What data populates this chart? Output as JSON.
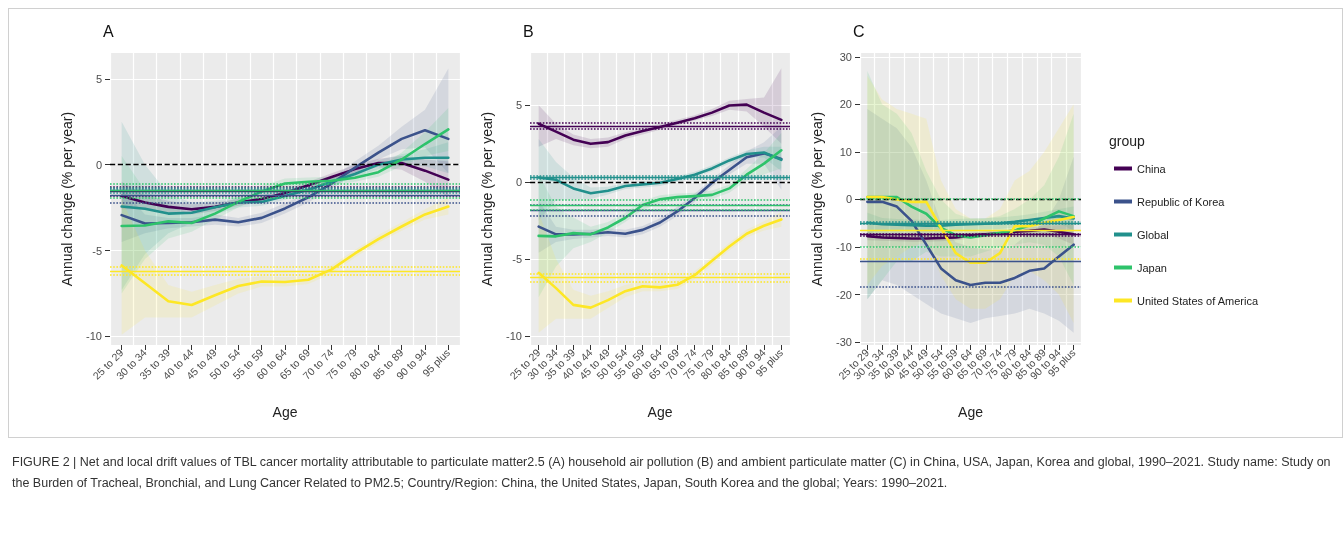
{
  "chart_data": [
    {
      "type": "line",
      "title": "A",
      "xlabel": "Age",
      "ylabel": "Annual change (% per year)",
      "categories": [
        "25 to 29",
        "30 to 34",
        "35 to 39",
        "40 to 44",
        "45 to 49",
        "50 to 54",
        "55 to 59",
        "60 to 64",
        "65 to 69",
        "70 to 74",
        "75 to 79",
        "80 to 84",
        "85 to 89",
        "90 to 94",
        "95 plus"
      ],
      "ylim": [
        -10.5,
        6.5
      ],
      "yticks": [
        -10,
        -5,
        0,
        5
      ],
      "grid": true,
      "annotations": [
        "FIGURE 2 | Net and local drift values of TBL cancer mortality attributable to particulate matter2.5 (A) household air pollution (B) and ambient particulate matter (C) in China, USA, Japan, Korea and global, 1990–2021. Study name: Study on the Burden of Tracheal, Bronchial, and Lung Cancer Related to PM2.5; Country/Region: China, the United States, Japan, South Korea and the global; Years: 1990–2021."
      ],
      "series": [
        {
          "color": "#440154",
          "values": [
            -1.83,
            -2.2,
            -2.46,
            -2.6,
            -2.46,
            -2.2,
            -2.0,
            -1.65,
            -1.2,
            -0.72,
            -0.26,
            0.1,
            0.1,
            -0.35,
            -0.87
          ],
          "lower": [
            -2.6,
            -2.6,
            -2.8,
            -2.9,
            -2.7,
            -2.4,
            -2.2,
            -1.85,
            -1.4,
            -0.95,
            -0.5,
            -0.15,
            -0.3,
            -1.0,
            -1.9
          ],
          "upper": [
            -1.0,
            -1.8,
            -2.1,
            -2.3,
            -2.2,
            -2.0,
            -1.8,
            -1.45,
            -1.0,
            -0.5,
            0.0,
            0.35,
            0.5,
            0.3,
            0.2
          ]
        },
        {
          "color": "#3b528b",
          "values": [
            -2.94,
            -3.43,
            -3.4,
            -3.35,
            -3.2,
            -3.35,
            -3.1,
            -2.55,
            -1.9,
            -1.1,
            -0.17,
            0.7,
            1.5,
            2.0,
            1.5
          ],
          "lower": [
            -4.5,
            -4.0,
            -3.7,
            -3.6,
            -3.5,
            -3.6,
            -3.4,
            -2.85,
            -2.2,
            -1.4,
            -0.5,
            0.3,
            0.9,
            1.0,
            -0.5
          ],
          "upper": [
            -1.4,
            -2.9,
            -3.1,
            -3.1,
            -2.9,
            -3.1,
            -2.8,
            -2.25,
            -1.6,
            -0.8,
            0.2,
            1.1,
            2.2,
            3.2,
            5.6
          ]
        },
        {
          "color": "#21908c",
          "values": [
            -2.44,
            -2.57,
            -2.85,
            -2.8,
            -2.48,
            -2.2,
            -2.17,
            -1.83,
            -1.46,
            -1.0,
            -0.54,
            0,
            0.3,
            0.4,
            0.4
          ],
          "lower": [
            -7.3,
            -5.2,
            -4.0,
            -3.4,
            -2.9,
            -2.5,
            -2.4,
            -2.05,
            -1.7,
            -1.2,
            -0.75,
            -0.25,
            0.0,
            -0.1,
            -0.5
          ],
          "upper": [
            2.5,
            0.0,
            -1.7,
            -2.2,
            -2.1,
            -1.9,
            -1.95,
            -1.6,
            -1.25,
            -0.8,
            -0.35,
            0.25,
            0.6,
            0.9,
            1.3
          ]
        },
        {
          "color": "#2ec36b",
          "values": [
            -3.57,
            -3.54,
            -3.3,
            -3.4,
            -2.85,
            -2.17,
            -1.56,
            -1.1,
            -1.0,
            -0.94,
            -0.76,
            -0.44,
            0.3,
            1.2,
            2.05
          ],
          "lower": [
            -7.5,
            -5.5,
            -4.3,
            -3.9,
            -3.2,
            -2.5,
            -1.9,
            -1.4,
            -1.25,
            -1.2,
            -1.0,
            -0.7,
            -0.1,
            0.5,
            0.8
          ],
          "upper": [
            0.5,
            -1.5,
            -2.3,
            -2.9,
            -2.5,
            -1.85,
            -1.25,
            -0.8,
            -0.75,
            -0.7,
            -0.5,
            -0.2,
            0.7,
            1.9,
            3.3
          ]
        },
        {
          "color": "#fde725",
          "values": [
            -5.87,
            -6.9,
            -7.95,
            -8.17,
            -7.6,
            -7.07,
            -6.8,
            -6.83,
            -6.7,
            -6.1,
            -5.17,
            -4.33,
            -3.6,
            -2.9,
            -2.44
          ],
          "lower": [
            -9.9,
            -8.9,
            -8.9,
            -8.9,
            -8.2,
            -7.5,
            -7.1,
            -7.1,
            -6.95,
            -6.35,
            -5.4,
            -4.55,
            -3.85,
            -3.2,
            -2.9
          ],
          "upper": [
            -2.0,
            -5.0,
            -7.0,
            -7.4,
            -7.0,
            -6.65,
            -6.5,
            -6.55,
            -6.45,
            -5.85,
            -4.95,
            -4.1,
            -3.35,
            -2.6,
            -1.9
          ]
        }
      ],
      "ref_lines": [
        {
          "axis": "y",
          "value": 0,
          "color": "#000000",
          "line_style": "dashed"
        },
        {
          "axis": "y",
          "value": -1.55,
          "color": "#440154",
          "line_style": "solid"
        },
        {
          "axis": "y",
          "value": -1.3,
          "color": "#440154",
          "line_style": "dotted"
        },
        {
          "axis": "y",
          "value": -1.8,
          "color": "#440154",
          "line_style": "dotted"
        },
        {
          "axis": "y",
          "value": -1.8,
          "color": "#3b528b",
          "line_style": "solid"
        },
        {
          "axis": "y",
          "value": -1.4,
          "color": "#3b528b",
          "line_style": "dotted"
        },
        {
          "axis": "y",
          "value": -2.2,
          "color": "#3b528b",
          "line_style": "dotted"
        },
        {
          "axis": "y",
          "value": -1.5,
          "color": "#21908c",
          "line_style": "solid"
        },
        {
          "axis": "y",
          "value": -1.35,
          "color": "#21908c",
          "line_style": "dotted"
        },
        {
          "axis": "y",
          "value": -1.65,
          "color": "#21908c",
          "line_style": "dotted"
        },
        {
          "axis": "y",
          "value": -1.5,
          "color": "#2ec36b",
          "line_style": "solid"
        },
        {
          "axis": "y",
          "value": -1.1,
          "color": "#2ec36b",
          "line_style": "dotted"
        },
        {
          "axis": "y",
          "value": -1.9,
          "color": "#2ec36b",
          "line_style": "dotted"
        },
        {
          "axis": "y",
          "value": -6.2,
          "color": "#fde725",
          "line_style": "solid"
        },
        {
          "axis": "y",
          "value": -5.94,
          "color": "#fde725",
          "line_style": "dotted"
        },
        {
          "axis": "y",
          "value": -6.43,
          "color": "#fde725",
          "line_style": "dotted"
        }
      ]
    },
    {
      "type": "line",
      "title": "B",
      "xlabel": "Age",
      "ylabel": "Annual change (% per year)",
      "categories": [
        "25 to 29",
        "30 to 34",
        "35 to 39",
        "40 to 44",
        "45 to 49",
        "50 to 54",
        "55 to 59",
        "60 to 64",
        "65 to 69",
        "70 to 74",
        "75 to 79",
        "80 to 84",
        "85 to 89",
        "90 to 94",
        "95 plus"
      ],
      "ylim": [
        -10.6,
        8.4
      ],
      "yticks": [
        -10,
        -5,
        0,
        5
      ],
      "grid": true,
      "series": [
        {
          "color": "#440154",
          "values": [
            3.8,
            3.28,
            2.76,
            2.49,
            2.6,
            3.03,
            3.32,
            3.59,
            3.86,
            4.15,
            4.52,
            4.98,
            5.04,
            4.52,
            4.05
          ],
          "lower": [
            2.3,
            2.8,
            2.4,
            2.2,
            2.3,
            2.8,
            3.1,
            3.4,
            3.7,
            4.0,
            4.3,
            4.7,
            4.6,
            3.6,
            2.5
          ],
          "upper": [
            5.0,
            3.8,
            3.1,
            2.8,
            2.9,
            3.25,
            3.55,
            3.8,
            4.05,
            4.35,
            4.75,
            5.3,
            5.4,
            5.5,
            7.4
          ]
        },
        {
          "color": "#3b528b",
          "values": [
            -2.9,
            -3.4,
            -3.4,
            -3.36,
            -3.26,
            -3.36,
            -3.11,
            -2.63,
            -1.91,
            -1.04,
            -0.04,
            0.79,
            1.62,
            1.87,
            1.51
          ],
          "lower": [
            -4.6,
            -3.9,
            -3.7,
            -3.6,
            -3.5,
            -3.6,
            -3.4,
            -2.9,
            -2.2,
            -1.3,
            -0.3,
            0.5,
            1.2,
            1.2,
            -0.5
          ],
          "upper": [
            -1.2,
            -2.9,
            -3.1,
            -3.1,
            -3.0,
            -3.1,
            -2.85,
            -2.35,
            -1.6,
            -0.75,
            0.2,
            1.1,
            2.0,
            2.6,
            3.6
          ]
        },
        {
          "color": "#21908c",
          "values": [
            0.3,
            0.15,
            -0.41,
            -0.73,
            -0.56,
            -0.25,
            -0.15,
            -0.04,
            0.2,
            0.48,
            0.89,
            1.41,
            1.83,
            1.93,
            1.45
          ],
          "lower": [
            -2.5,
            -1.2,
            -1.1,
            -1.1,
            -0.8,
            -0.45,
            -0.35,
            -0.25,
            0,
            0.28,
            0.7,
            1.2,
            1.6,
            1.6,
            0.7
          ],
          "upper": [
            2.8,
            1.3,
            0.3,
            -0.35,
            -0.3,
            -0.05,
            0.05,
            0.15,
            0.4,
            0.68,
            1.1,
            1.6,
            2.05,
            2.3,
            2.3
          ]
        },
        {
          "color": "#2ec36b",
          "values": [
            -3.5,
            -3.53,
            -3.32,
            -3.4,
            -2.95,
            -2.32,
            -1.49,
            -1.12,
            -0.98,
            -0.91,
            -0.83,
            -0.41,
            0.48,
            1.2,
            2.07
          ],
          "lower": [
            -7.5,
            -5.5,
            -4.3,
            -3.9,
            -3.3,
            -2.6,
            -1.8,
            -1.4,
            -1.2,
            -1.15,
            -1.1,
            -0.7,
            0.1,
            0.5,
            0.9
          ],
          "upper": [
            0.5,
            -1.6,
            -2.3,
            -2.9,
            -2.6,
            -2.0,
            -1.2,
            -0.85,
            -0.75,
            -0.7,
            -0.55,
            -0.15,
            0.85,
            1.9,
            3.2
          ]
        },
        {
          "color": "#fde725",
          "values": [
            -5.9,
            -6.9,
            -7.99,
            -8.17,
            -7.68,
            -7.1,
            -6.78,
            -6.85,
            -6.68,
            -6.06,
            -5.12,
            -4.19,
            -3.36,
            -2.84,
            -2.43
          ],
          "lower": [
            -9.8,
            -8.9,
            -8.9,
            -8.9,
            -8.2,
            -7.5,
            -7.1,
            -7.1,
            -6.95,
            -6.3,
            -5.4,
            -4.45,
            -3.6,
            -3.15,
            -2.9
          ],
          "upper": [
            -2.0,
            -5.0,
            -7.0,
            -7.4,
            -7.1,
            -6.7,
            -6.45,
            -6.6,
            -6.4,
            -5.8,
            -4.85,
            -3.95,
            -3.1,
            -2.55,
            -1.95
          ]
        }
      ],
      "ref_lines": [
        {
          "axis": "y",
          "value": 0,
          "color": "#000000",
          "line_style": "dashed"
        },
        {
          "axis": "y",
          "value": 3.65,
          "color": "#440154",
          "line_style": "solid"
        },
        {
          "axis": "y",
          "value": 3.84,
          "color": "#440154",
          "line_style": "dotted"
        },
        {
          "axis": "y",
          "value": 3.49,
          "color": "#440154",
          "line_style": "dotted"
        },
        {
          "axis": "y",
          "value": -1.85,
          "color": "#3b528b",
          "line_style": "solid"
        },
        {
          "axis": "y",
          "value": -1.49,
          "color": "#3b528b",
          "line_style": "dotted"
        },
        {
          "axis": "y",
          "value": -2.22,
          "color": "#3b528b",
          "line_style": "dotted"
        },
        {
          "axis": "y",
          "value": 0.31,
          "color": "#21908c",
          "line_style": "solid"
        },
        {
          "axis": "y",
          "value": 0.4,
          "color": "#21908c",
          "line_style": "dotted"
        },
        {
          "axis": "y",
          "value": 0.22,
          "color": "#21908c",
          "line_style": "dotted"
        },
        {
          "axis": "y",
          "value": -1.49,
          "color": "#2ec36b",
          "line_style": "solid"
        },
        {
          "axis": "y",
          "value": -1.14,
          "color": "#2ec36b",
          "line_style": "dotted"
        },
        {
          "axis": "y",
          "value": -1.8,
          "color": "#2ec36b",
          "line_style": "dotted"
        },
        {
          "axis": "y",
          "value": -6.22,
          "color": "#fde725",
          "line_style": "solid"
        },
        {
          "axis": "y",
          "value": -5.98,
          "color": "#fde725",
          "line_style": "dotted"
        },
        {
          "axis": "y",
          "value": -6.47,
          "color": "#fde725",
          "line_style": "dotted"
        }
      ]
    },
    {
      "type": "line",
      "title": "C",
      "xlabel": "Age",
      "ylabel": "Annual change (% per year)",
      "legend_title": "group",
      "legend": "right",
      "categories": [
        "25 to 29",
        "30 to 34",
        "35 to 39",
        "40 to 44",
        "45 to 49",
        "50 to 54",
        "55 to 59",
        "60 to 64",
        "65 to 69",
        "70 to 74",
        "75 to 79",
        "80 to 84",
        "85 to 89",
        "90 to 94",
        "95 plus"
      ],
      "ylim": [
        -30.6,
        30.8
      ],
      "yticks": [
        -30,
        -20,
        -10,
        0,
        10,
        20,
        30
      ],
      "grid": true,
      "series": [
        {
          "name": "China",
          "color": "#440154",
          "values": [
            -7.7,
            -8.0,
            -8.1,
            -8.2,
            -8.2,
            -8.1,
            -8.0,
            -7.6,
            -7.3,
            -7.1,
            -6.8,
            -6.6,
            -6.3,
            -6.8,
            -7.3
          ],
          "lower": [
            -8.6,
            -8.7,
            -8.8,
            -8.9,
            -8.9,
            -8.8,
            -8.6,
            -8.2,
            -7.9,
            -7.7,
            -7.4,
            -7.3,
            -7.2,
            -8.2,
            -9.5
          ],
          "upper": [
            -6.8,
            -7.3,
            -7.4,
            -7.5,
            -7.5,
            -7.4,
            -7.4,
            -7.0,
            -6.7,
            -6.5,
            -6.2,
            -5.9,
            -5.4,
            -5.4,
            -5.1
          ]
        },
        {
          "name": "Republic of Korea",
          "color": "#3b528b",
          "values": [
            -0.5,
            -0.5,
            -1.5,
            -4.5,
            -9.5,
            -14.5,
            -17,
            -18,
            -17.5,
            -17.5,
            -16.5,
            -15,
            -14.5,
            -12,
            -9.5
          ],
          "lower": [
            -21,
            -17,
            -18,
            -20,
            -22,
            -24,
            -25,
            -26,
            -25,
            -24.5,
            -24,
            -23,
            -24,
            -25.5,
            -28
          ],
          "upper": [
            19,
            17,
            15,
            11,
            4,
            -5,
            -9,
            -10,
            -10.5,
            -10.5,
            -9.5,
            -7,
            -5,
            0,
            9
          ]
        },
        {
          "name": "Global",
          "color": "#21908c",
          "values": [
            -4.9,
            -5.2,
            -5.3,
            -5.4,
            -5.5,
            -5.5,
            -5.3,
            -5.2,
            -5.1,
            -5.0,
            -4.7,
            -4.3,
            -3.9,
            -3.5,
            -4.0
          ],
          "lower": [
            -7,
            -6.5,
            -6.5,
            -6.6,
            -6.7,
            -6.7,
            -6.5,
            -6.4,
            -6.3,
            -6.2,
            -5.9,
            -5.5,
            -5.2,
            -5.0,
            -6.5
          ],
          "upper": [
            -2.8,
            -3.9,
            -4.1,
            -4.2,
            -4.3,
            -4.3,
            -4.1,
            -4.0,
            -3.9,
            -3.8,
            -3.5,
            -3.1,
            -2.6,
            -2.0,
            -1.5
          ]
        },
        {
          "name": "Japan",
          "color": "#2ec36b",
          "values": [
            0.5,
            0.5,
            0.5,
            -1.5,
            -3,
            -6,
            -7.5,
            -8,
            -7.5,
            -7,
            -6.5,
            -5.5,
            -4,
            -2.5,
            -3.5
          ],
          "lower": [
            -21,
            -17,
            -13,
            -13,
            -11,
            -12,
            -12,
            -12,
            -11,
            -10,
            -9.5,
            -9,
            -9.5,
            -12,
            -18
          ],
          "upper": [
            27,
            20,
            18,
            14,
            6,
            0,
            -3,
            -4,
            -4,
            -3.5,
            -2,
            0,
            3,
            9,
            18
          ]
        },
        {
          "name": "United States of America",
          "color": "#fde725",
          "values": [
            0.5,
            0.5,
            0,
            -0.5,
            -0.5,
            -6.0,
            -11.3,
            -13.3,
            -13.3,
            -11.3,
            -5.6,
            -5.6,
            -4.9,
            -4.3,
            -3.7
          ],
          "lower": [
            -18,
            -14,
            -12,
            -10,
            -9,
            -16,
            -21,
            -23,
            -23,
            -21,
            -16,
            -15,
            -17,
            -20,
            -26
          ],
          "upper": [
            26,
            21,
            19,
            18,
            17,
            4,
            -2,
            -4,
            -4,
            -2,
            4,
            6,
            10,
            15,
            20
          ]
        }
      ],
      "ref_lines": [
        {
          "axis": "y",
          "value": 0,
          "color": "#000000",
          "line_style": "dashed"
        },
        {
          "axis": "y",
          "value": -7.4,
          "color": "#440154",
          "line_style": "solid"
        },
        {
          "axis": "y",
          "value": -7.2,
          "color": "#440154",
          "line_style": "dotted"
        },
        {
          "axis": "y",
          "value": -7.7,
          "color": "#440154",
          "line_style": "dotted"
        },
        {
          "axis": "y",
          "value": -13,
          "color": "#3b528b",
          "line_style": "solid"
        },
        {
          "axis": "y",
          "value": -18.3,
          "color": "#3b528b",
          "line_style": "dotted"
        },
        {
          "axis": "y",
          "value": -4.9,
          "color": "#21908c",
          "line_style": "solid"
        },
        {
          "axis": "y",
          "value": -4.7,
          "color": "#21908c",
          "line_style": "dotted"
        },
        {
          "axis": "y",
          "value": -5.1,
          "color": "#21908c",
          "line_style": "dotted"
        },
        {
          "axis": "y",
          "value": 0.2,
          "color": "#2ec36b",
          "line_style": "dotted"
        },
        {
          "axis": "y",
          "value": -9.9,
          "color": "#2ec36b",
          "line_style": "dotted"
        },
        {
          "axis": "y",
          "value": -6.5,
          "color": "#fde725",
          "line_style": "solid"
        },
        {
          "axis": "y",
          "value": -12.5,
          "color": "#fde725",
          "line_style": "dotted"
        }
      ]
    }
  ]
}
